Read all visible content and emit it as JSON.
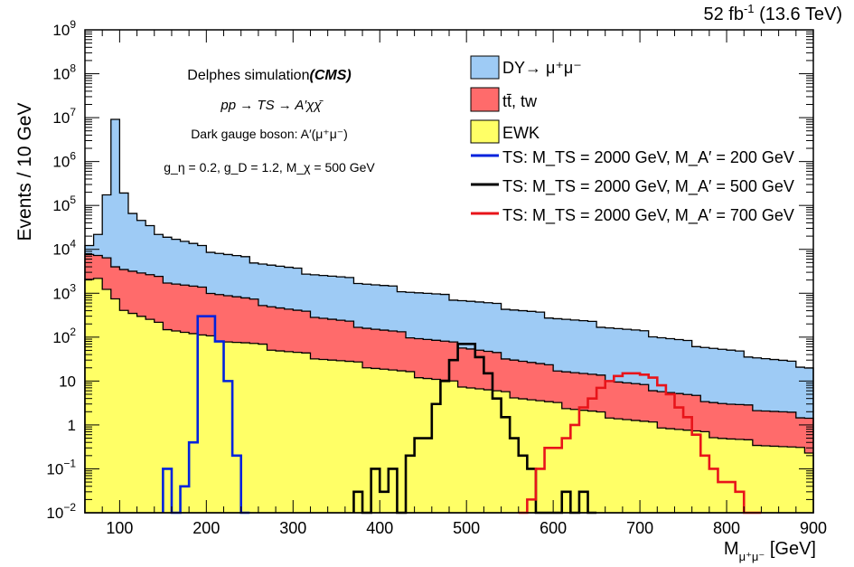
{
  "chart_data": {
    "type": "histogram",
    "lumi_label": "52 fb",
    "lumi_sup": "-1",
    "energy_label": " (13.6 TeV)",
    "ylabel": "Events / 10 GeV",
    "xlabel_main": "M",
    "xlabel_sub": "μ⁺μ⁻",
    "xlabel_unit": " [GeV]",
    "xlim": [
      60,
      900
    ],
    "ylim": [
      0.01,
      1000000000
    ],
    "yscale": "log",
    "x_ticks": [
      100,
      200,
      300,
      400,
      500,
      600,
      700,
      800,
      900
    ],
    "x_tick_labels": [
      "100",
      "200",
      "300",
      "400",
      "500",
      "600",
      "700",
      "800",
      "900"
    ],
    "y_ticks": [
      {
        "value": 0.01,
        "base": "10",
        "exp": "−2"
      },
      {
        "value": 0.1,
        "base": "10",
        "exp": "−1"
      },
      {
        "value": 1,
        "base": "1",
        "exp": ""
      },
      {
        "value": 10,
        "base": "10",
        "exp": ""
      },
      {
        "value": 100,
        "base": "10",
        "exp": "2"
      },
      {
        "value": 1000,
        "base": "10",
        "exp": "3"
      },
      {
        "value": 10000,
        "base": "10",
        "exp": "4"
      },
      {
        "value": 100000,
        "base": "10",
        "exp": "5"
      },
      {
        "value": 1000000,
        "base": "10",
        "exp": "6"
      },
      {
        "value": 10000000,
        "base": "10",
        "exp": "7"
      },
      {
        "value": 100000000,
        "base": "10",
        "exp": "8"
      },
      {
        "value": 1000000000,
        "base": "10",
        "exp": "9"
      }
    ],
    "annotations": {
      "sim_label": "Delphes simulation",
      "sim_tag": "(CMS)",
      "process": "pp → TS → A′χχ̄",
      "boson": "Dark gauge boson: A′(μ⁺μ⁻)",
      "couplings": "g_η = 0.2, g_D = 1.2, M_χ = 500 GeV"
    },
    "bin_width": 10,
    "stack": [
      {
        "name": "DY",
        "legend": "DY→ μ⁺μ⁻",
        "color": "#9ecbf5",
        "style": "fill",
        "key_points": [
          [
            60,
            9000
          ],
          [
            75,
            20000
          ],
          [
            85,
            200000
          ],
          [
            90,
            3000000
          ],
          [
            95,
            10000000
          ],
          [
            100,
            2000000
          ],
          [
            105,
            200000
          ],
          [
            110,
            80000
          ],
          [
            130,
            35000
          ],
          [
            150,
            22000
          ],
          [
            200,
            10000
          ],
          [
            300,
            3500
          ],
          [
            400,
            1500
          ],
          [
            500,
            700
          ],
          [
            600,
            300
          ],
          [
            700,
            130
          ],
          [
            800,
            50
          ],
          [
            900,
            20
          ]
        ]
      },
      {
        "name": "ttbar_tw",
        "legend": "tt̄, tw",
        "color": "#ff6b6b",
        "style": "fill",
        "key_points": [
          [
            60,
            8000
          ],
          [
            80,
            6500
          ],
          [
            100,
            4000
          ],
          [
            150,
            2000
          ],
          [
            200,
            1200
          ],
          [
            250,
            700
          ],
          [
            300,
            400
          ],
          [
            400,
            150
          ],
          [
            500,
            60
          ],
          [
            600,
            20
          ],
          [
            700,
            8
          ],
          [
            800,
            3
          ],
          [
            900,
            1.5
          ]
        ]
      },
      {
        "name": "EWK",
        "legend": "EWK",
        "color": "#ffff66",
        "style": "fill",
        "key_points": [
          [
            60,
            1500
          ],
          [
            70,
            3000
          ],
          [
            80,
            1500
          ],
          [
            100,
            500
          ],
          [
            150,
            180
          ],
          [
            200,
            100
          ],
          [
            250,
            70
          ],
          [
            300,
            45
          ],
          [
            400,
            20
          ],
          [
            500,
            8
          ],
          [
            600,
            3
          ],
          [
            700,
            1.2
          ],
          [
            800,
            0.5
          ],
          [
            900,
            0.25
          ]
        ]
      }
    ],
    "series": [
      {
        "name": "TS_MA200",
        "legend": "TS: M_TS = 2000 GeV, M_A′ = 200 GeV",
        "color": "#0022dd",
        "style": "step",
        "bins": [
          [
            150,
            0.1
          ],
          [
            160,
            0.01
          ],
          [
            170,
            0.04
          ],
          [
            180,
            0.4
          ],
          [
            190,
            300
          ],
          [
            200,
            300
          ],
          [
            210,
            80
          ],
          [
            220,
            10
          ],
          [
            230,
            0.2
          ],
          [
            240,
            0.01
          ]
        ]
      },
      {
        "name": "TS_MA500",
        "legend": "TS: M_TS = 2000 GeV, M_A′ = 500 GeV",
        "color": "#000000",
        "style": "step",
        "bins": [
          [
            370,
            0.03
          ],
          [
            380,
            0.01
          ],
          [
            390,
            0.1
          ],
          [
            400,
            0.03
          ],
          [
            410,
            0.1
          ],
          [
            420,
            0.01
          ],
          [
            430,
            0.2
          ],
          [
            440,
            0.5
          ],
          [
            450,
            0.5
          ],
          [
            460,
            3
          ],
          [
            470,
            10
          ],
          [
            480,
            30
          ],
          [
            490,
            70
          ],
          [
            500,
            70
          ],
          [
            510,
            35
          ],
          [
            520,
            15
          ],
          [
            530,
            4
          ],
          [
            540,
            1.5
          ],
          [
            550,
            0.5
          ],
          [
            560,
            0.2
          ],
          [
            570,
            0.1
          ],
          [
            580,
            0.01
          ],
          [
            600,
            0.01
          ],
          [
            610,
            0.03
          ],
          [
            620,
            0.01
          ],
          [
            630,
            0.03
          ],
          [
            640,
            0.01
          ]
        ]
      },
      {
        "name": "TS_MA700",
        "legend": "TS: M_TS = 2000 GeV, M_A′ = 700 GeV",
        "color": "#e8141a",
        "style": "step",
        "bins": [
          [
            560,
            0.01
          ],
          [
            570,
            0.02
          ],
          [
            580,
            0.1
          ],
          [
            590,
            0.3
          ],
          [
            600,
            0.3
          ],
          [
            610,
            0.5
          ],
          [
            620,
            1
          ],
          [
            630,
            2.5
          ],
          [
            640,
            4
          ],
          [
            650,
            7
          ],
          [
            660,
            10
          ],
          [
            670,
            13
          ],
          [
            680,
            15
          ],
          [
            690,
            15
          ],
          [
            700,
            14
          ],
          [
            710,
            12
          ],
          [
            720,
            8
          ],
          [
            730,
            5
          ],
          [
            740,
            2.5
          ],
          [
            750,
            1.5
          ],
          [
            760,
            0.6
          ],
          [
            770,
            0.2
          ],
          [
            780,
            0.1
          ],
          [
            790,
            0.05
          ],
          [
            800,
            0.05
          ],
          [
            810,
            0.03
          ],
          [
            820,
            0.01
          ],
          [
            830,
            0.01
          ]
        ]
      }
    ]
  }
}
